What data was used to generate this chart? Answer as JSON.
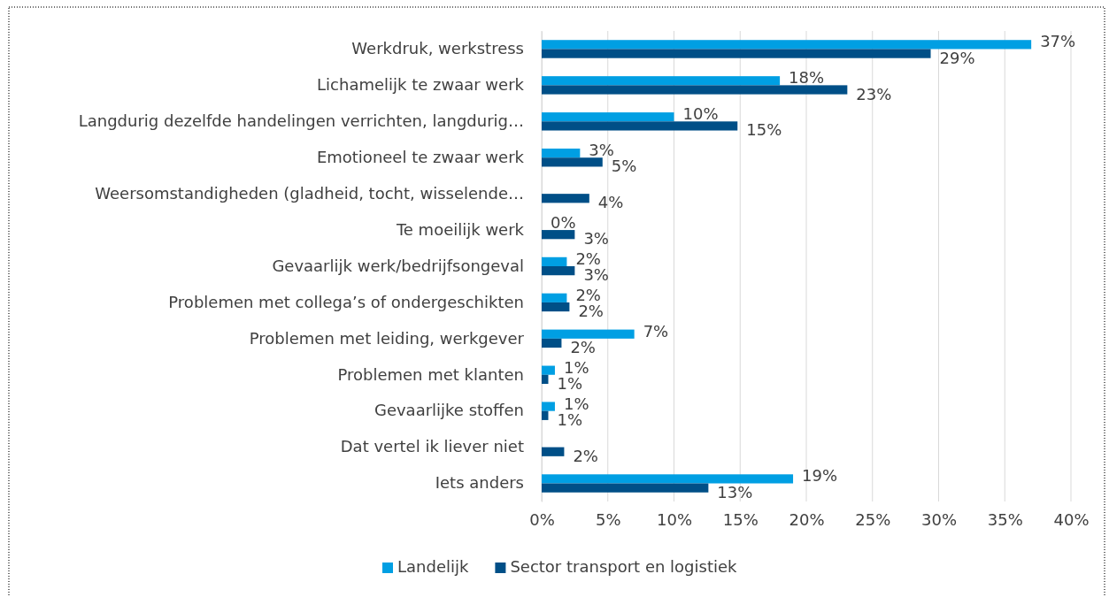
{
  "chart_data": {
    "type": "bar",
    "orientation": "horizontal",
    "categories": [
      "Werkdruk, werkstress",
      "Lichamelijk te zwaar werk",
      "Langdurig dezelfde handelingen verrichten, langdurig…",
      "Emotioneel te zwaar werk",
      "Weersomstandigheden (gladheid, tocht, wisselende…",
      "Te moeilijk werk",
      "Gevaarlijk werk/bedrijfsongeval",
      "Problemen met collega’s of ondergeschikten",
      "Problemen met leiding, werkgever",
      "Problemen met klanten",
      "Gevaarlijke stoffen",
      "Dat vertel ik liever niet",
      "Iets anders"
    ],
    "series": [
      {
        "name": "Landelijk",
        "color": "#009fe3",
        "values": [
          37.0,
          18.0,
          10.0,
          2.9,
          null,
          0,
          1.9,
          1.9,
          7.0,
          1.0,
          1.0,
          null,
          19.0
        ],
        "value_labels": [
          "37%",
          "18%",
          "10%",
          "3%",
          null,
          "0%",
          "2%",
          "2%",
          "7%",
          "1%",
          "1%",
          null,
          "19%"
        ]
      },
      {
        "name": "Sector transport en logistiek",
        "color": "#004f87",
        "values": [
          29.4,
          23.1,
          14.8,
          4.6,
          3.6,
          2.5,
          2.5,
          2.1,
          1.5,
          0.5,
          0.5,
          1.7,
          12.6
        ],
        "value_labels": [
          "29%",
          "23%",
          "15%",
          "5%",
          "4%",
          "3%",
          "3%",
          "2%",
          "2%",
          "1%",
          "1%",
          "2%",
          "13%"
        ]
      }
    ],
    "xlim": [
      0,
      40
    ],
    "xticks": [
      {
        "value": 0,
        "label": "0%"
      },
      {
        "value": 5,
        "label": "5%"
      },
      {
        "value": 10,
        "label": "10%"
      },
      {
        "value": 15,
        "label": "15%"
      },
      {
        "value": 20,
        "label": "20%"
      },
      {
        "value": 25,
        "label": "25%"
      },
      {
        "value": 30,
        "label": "30%"
      },
      {
        "value": 35,
        "label": "35%"
      },
      {
        "value": 40,
        "label": "40%"
      }
    ],
    "grid": "x",
    "legend": "bottom"
  }
}
